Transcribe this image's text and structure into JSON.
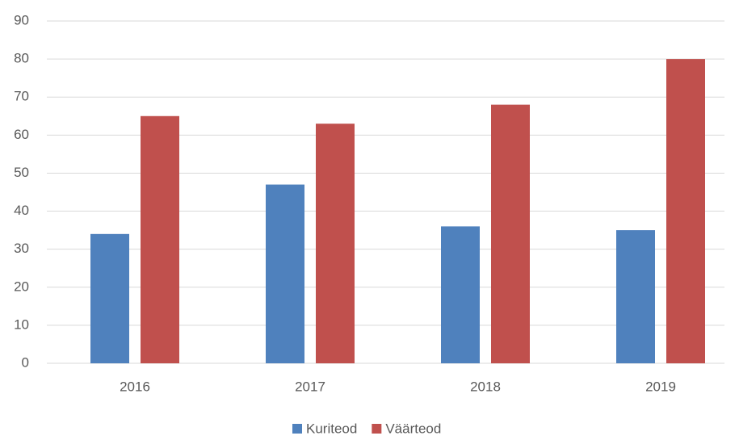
{
  "chart_data": {
    "type": "bar",
    "categories": [
      "2016",
      "2017",
      "2018",
      "2019"
    ],
    "series": [
      {
        "name": "Kuriteod",
        "color": "#4f81bd",
        "values": [
          34,
          47,
          36,
          35
        ]
      },
      {
        "name": "Väärteod",
        "color": "#c0504d",
        "values": [
          65,
          63,
          68,
          80
        ]
      }
    ],
    "ylim": [
      0,
      90
    ],
    "yticks": [
      0,
      10,
      20,
      30,
      40,
      50,
      60,
      70,
      80,
      90
    ],
    "grid": true,
    "legend": "bottom"
  }
}
